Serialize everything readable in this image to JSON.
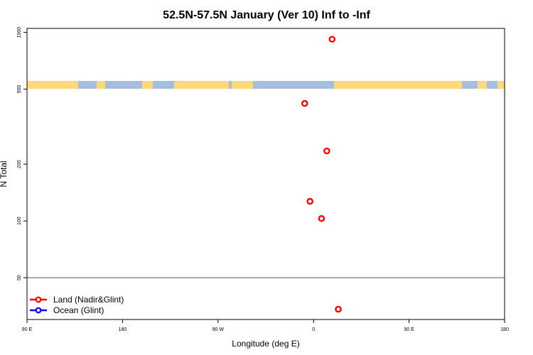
{
  "chart_data": {
    "type": "scatter",
    "title": "52.5N-57.5N January (Ver 10)   Inf to -Inf",
    "xlabel": "Longitude (deg E)",
    "ylabel": "N Total",
    "xlim": [
      -90,
      180
    ],
    "ylim": [
      30,
      1050
    ],
    "y_scale": "log",
    "x_ticks": [
      {
        "value": -90,
        "label": "90 E"
      },
      {
        "value": -36,
        "label": "180"
      },
      {
        "value": 18,
        "label": "90 W"
      },
      {
        "value": 72,
        "label": "0"
      },
      {
        "value": 126,
        "label": "90 E"
      },
      {
        "value": 180,
        "label": "180"
      }
    ],
    "y_ticks": [
      {
        "value": 50,
        "label": "50"
      },
      {
        "value": 100,
        "label": "100"
      },
      {
        "value": 200,
        "label": "200"
      },
      {
        "value": 500,
        "label": "500"
      },
      {
        "value": 1000,
        "label": "1000"
      }
    ],
    "reference_line": 50,
    "land_ocean_strip": {
      "land_color": "#FFD978",
      "ocean_color": "#A7BDDF"
    },
    "series": [
      {
        "name": "Land (Nadir&Glint)",
        "color": "#ff0000",
        "points": [
          [
            82.5,
            920
          ],
          [
            67,
            420
          ],
          [
            79.5,
            235
          ],
          [
            70,
            127
          ],
          [
            76.5,
            103
          ],
          [
            86,
            34
          ]
        ]
      },
      {
        "name": "Ocean (Glint)",
        "color": "#0000ff",
        "points": []
      }
    ],
    "legend_position": "bottom-left",
    "grid": false
  }
}
